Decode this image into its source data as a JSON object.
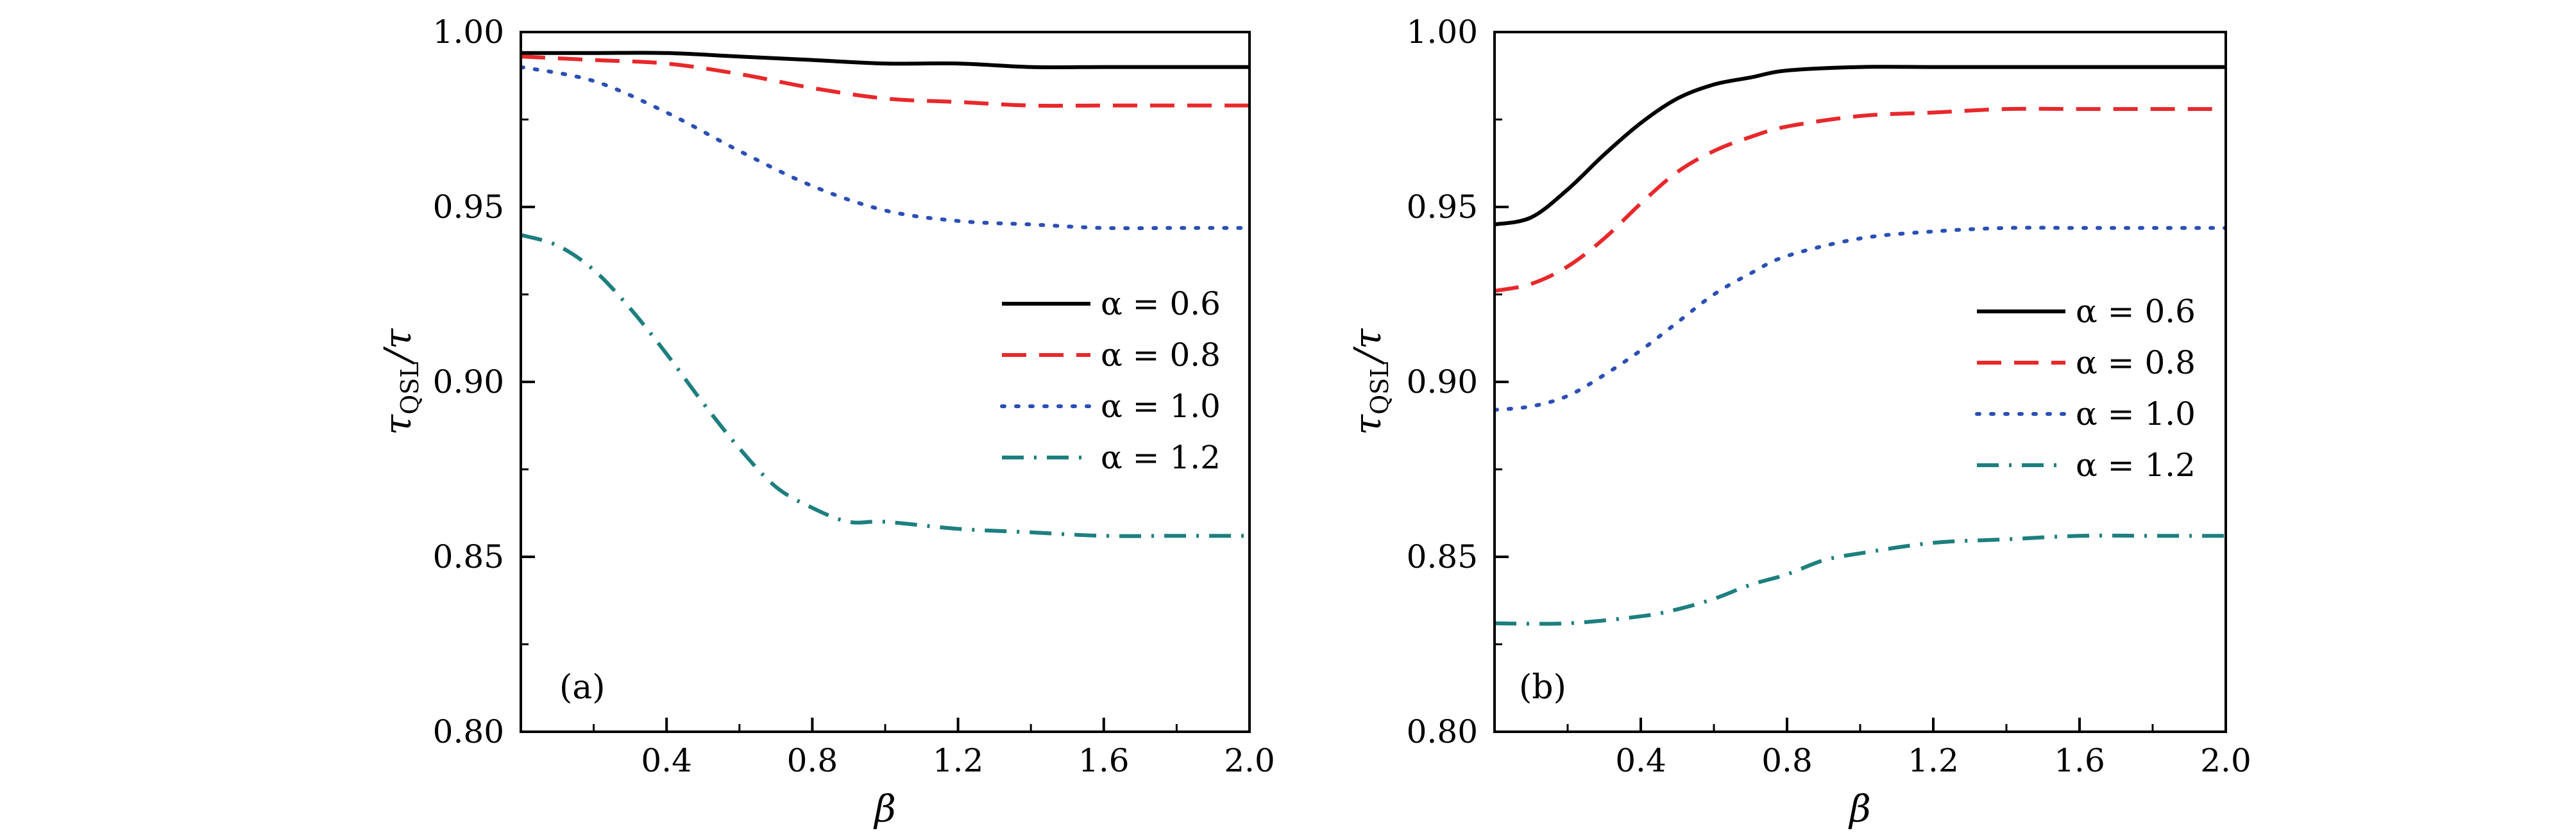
{
  "chart_data": [
    {
      "type": "line",
      "panel_label": "(a)",
      "xlabel": "β",
      "ylabel": "τQSL/τ",
      "ylabel_main": "τ",
      "ylabel_sub": "QSL",
      "ylabel_tail": "/τ",
      "xlim": [
        0,
        2.0
      ],
      "ylim": [
        0.8,
        1.0
      ],
      "xticks": [
        0.4,
        0.8,
        1.2,
        1.6,
        2.0
      ],
      "xtick_labels": [
        "0.4",
        "0.8",
        "1.2",
        "1.6",
        "2.0"
      ],
      "yticks": [
        0.8,
        0.85,
        0.9,
        0.95,
        1.0
      ],
      "ytick_labels": [
        "0.80",
        "0.85",
        "0.90",
        "0.95",
        "1.00"
      ],
      "legend_position": "middle-right",
      "series": [
        {
          "name": "α = 0.6",
          "color": "#000000",
          "dash": "solid",
          "x": [
            0,
            0.2,
            0.4,
            0.6,
            0.8,
            1.0,
            1.2,
            1.4,
            1.6,
            1.8,
            2.0
          ],
          "values": [
            0.994,
            0.994,
            0.994,
            0.993,
            0.992,
            0.991,
            0.991,
            0.99,
            0.99,
            0.99,
            0.99
          ]
        },
        {
          "name": "α = 0.8",
          "color": "#e8282b",
          "dash": "dash",
          "x": [
            0,
            0.2,
            0.4,
            0.6,
            0.8,
            1.0,
            1.2,
            1.4,
            1.6,
            1.8,
            2.0
          ],
          "values": [
            0.993,
            0.992,
            0.991,
            0.988,
            0.984,
            0.981,
            0.98,
            0.979,
            0.979,
            0.979,
            0.979
          ]
        },
        {
          "name": "α = 1.0",
          "color": "#2b4fb5",
          "dash": "dot",
          "x": [
            0,
            0.2,
            0.4,
            0.6,
            0.8,
            1.0,
            1.2,
            1.4,
            1.6,
            1.8,
            2.0
          ],
          "values": [
            0.99,
            0.986,
            0.977,
            0.966,
            0.956,
            0.949,
            0.946,
            0.945,
            0.944,
            0.944,
            0.944
          ]
        },
        {
          "name": "α = 1.2",
          "color": "#1d7f7f",
          "dash": "dashdot",
          "x": [
            0,
            0.1,
            0.2,
            0.3,
            0.4,
            0.5,
            0.6,
            0.7,
            0.8,
            0.9,
            1.0,
            1.2,
            1.4,
            1.6,
            1.8,
            2.0
          ],
          "values": [
            0.942,
            0.939,
            0.932,
            0.921,
            0.908,
            0.894,
            0.881,
            0.87,
            0.864,
            0.86,
            0.86,
            0.858,
            0.857,
            0.856,
            0.856,
            0.856
          ]
        }
      ]
    },
    {
      "type": "line",
      "panel_label": "(b)",
      "xlabel": "β",
      "ylabel": "τQSL/τ",
      "ylabel_main": "τ",
      "ylabel_sub": "QSL",
      "ylabel_tail": "/τ",
      "xlim": [
        0,
        2.0
      ],
      "ylim": [
        0.8,
        1.0
      ],
      "xticks": [
        0.4,
        0.8,
        1.2,
        1.6,
        2.0
      ],
      "xtick_labels": [
        "0.4",
        "0.8",
        "1.2",
        "1.6",
        "2.0"
      ],
      "yticks": [
        0.8,
        0.85,
        0.9,
        0.95,
        1.0
      ],
      "ytick_labels": [
        "0.80",
        "0.85",
        "0.90",
        "0.95",
        "1.00"
      ],
      "legend_position": "middle-right",
      "series": [
        {
          "name": "α = 0.6",
          "color": "#000000",
          "dash": "solid",
          "x": [
            0,
            0.1,
            0.2,
            0.3,
            0.4,
            0.5,
            0.6,
            0.7,
            0.8,
            1.0,
            1.2,
            1.4,
            1.6,
            1.8,
            2.0
          ],
          "values": [
            0.945,
            0.947,
            0.955,
            0.965,
            0.974,
            0.981,
            0.985,
            0.987,
            0.989,
            0.99,
            0.99,
            0.99,
            0.99,
            0.99,
            0.99
          ]
        },
        {
          "name": "α = 0.8",
          "color": "#e8282b",
          "dash": "dash",
          "x": [
            0,
            0.1,
            0.2,
            0.3,
            0.4,
            0.5,
            0.6,
            0.7,
            0.8,
            1.0,
            1.2,
            1.4,
            1.6,
            1.8,
            2.0
          ],
          "values": [
            0.926,
            0.928,
            0.933,
            0.941,
            0.951,
            0.96,
            0.966,
            0.97,
            0.973,
            0.976,
            0.977,
            0.978,
            0.978,
            0.978,
            0.978
          ]
        },
        {
          "name": "α = 1.0",
          "color": "#2b4fb5",
          "dash": "dot",
          "x": [
            0,
            0.1,
            0.2,
            0.3,
            0.4,
            0.5,
            0.6,
            0.7,
            0.8,
            1.0,
            1.2,
            1.4,
            1.6,
            1.8,
            2.0
          ],
          "values": [
            0.892,
            0.893,
            0.896,
            0.902,
            0.909,
            0.917,
            0.925,
            0.931,
            0.936,
            0.941,
            0.943,
            0.944,
            0.944,
            0.944,
            0.944
          ]
        },
        {
          "name": "α = 1.2",
          "color": "#1d7f7f",
          "dash": "dashdot",
          "x": [
            0,
            0.2,
            0.4,
            0.5,
            0.6,
            0.7,
            0.8,
            0.9,
            1.0,
            1.2,
            1.4,
            1.6,
            1.8,
            2.0
          ],
          "values": [
            0.831,
            0.831,
            0.833,
            0.835,
            0.838,
            0.842,
            0.845,
            0.849,
            0.851,
            0.854,
            0.855,
            0.856,
            0.856,
            0.856
          ]
        }
      ]
    }
  ]
}
